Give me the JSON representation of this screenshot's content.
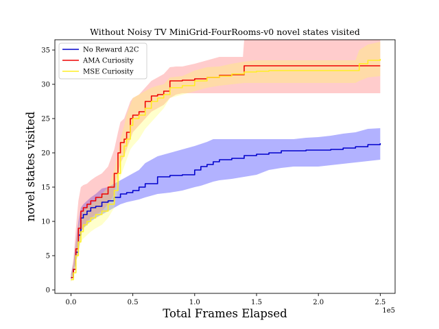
{
  "chart_data": {
    "type": "line",
    "title": "Without Noisy TV MiniGrid-FourRooms-v0 novel states visited",
    "xlabel": "Total Frames Elapsed",
    "ylabel": "novel states visited",
    "x_offset_text": "1e5",
    "xlim": [
      -0.13,
      2.62
    ],
    "ylim": [
      -0.5,
      36.5
    ],
    "x_ticks": [
      0.0,
      0.5,
      1.0,
      1.5,
      2.0,
      2.5
    ],
    "x_tick_labels": [
      "0.0",
      "0.5",
      "1.0",
      "1.5",
      "2.0",
      "2.5"
    ],
    "y_ticks": [
      0,
      5,
      10,
      15,
      20,
      25,
      30,
      35
    ],
    "y_tick_labels": [
      "0",
      "5",
      "10",
      "15",
      "20",
      "25",
      "30",
      "35"
    ],
    "legend_placement": "top-left",
    "grid": false,
    "series": [
      {
        "name": "No Reward A2C",
        "color": "#0000cc",
        "band_color": "#0000ff",
        "x": [
          0,
          0.02,
          0.04,
          0.06,
          0.08,
          0.1,
          0.13,
          0.16,
          0.2,
          0.25,
          0.3,
          0.35,
          0.4,
          0.45,
          0.5,
          0.55,
          0.6,
          0.7,
          0.8,
          0.9,
          1.0,
          1.05,
          1.1,
          1.15,
          1.2,
          1.3,
          1.4,
          1.5,
          1.6,
          1.7,
          1.8,
          1.9,
          2.0,
          2.1,
          2.2,
          2.3,
          2.4,
          2.5
        ],
        "y": [
          1.8,
          3.0,
          5.5,
          8.0,
          10.5,
          11.0,
          11.5,
          12.0,
          12.2,
          12.8,
          13.0,
          13.5,
          14.0,
          14.2,
          14.5,
          15.0,
          15.5,
          16.5,
          16.7,
          16.8,
          17.5,
          18.0,
          18.3,
          18.7,
          19.0,
          19.2,
          19.6,
          19.8,
          20.0,
          20.3,
          20.3,
          20.4,
          20.4,
          20.5,
          20.7,
          20.9,
          21.2,
          21.4
        ],
        "lower": [
          1.3,
          2.5,
          4.0,
          5.5,
          8.5,
          9.0,
          9.5,
          10.0,
          10.5,
          11.0,
          11.5,
          12.0,
          12.5,
          12.8,
          13.0,
          13.2,
          13.5,
          14.0,
          14.2,
          14.5,
          15.0,
          15.2,
          15.5,
          15.8,
          16.0,
          16.2,
          16.5,
          16.8,
          17.5,
          17.8,
          18.0,
          18.0,
          18.0,
          18.2,
          18.4,
          18.6,
          18.8,
          19.0
        ],
        "upper": [
          2.3,
          3.8,
          7.0,
          10.0,
          12.0,
          12.5,
          13.0,
          13.5,
          14.0,
          14.8,
          15.0,
          15.5,
          16.0,
          16.5,
          17.0,
          17.5,
          18.5,
          19.5,
          20.0,
          20.5,
          21.0,
          21.3,
          21.6,
          22.0,
          22.0,
          22.0,
          22.0,
          22.0,
          22.0,
          22.0,
          22.0,
          22.2,
          22.3,
          22.5,
          22.8,
          23.0,
          23.5,
          23.6
        ]
      },
      {
        "name": "AMA Curiosity",
        "color": "#ee0000",
        "band_color": "#ff5555",
        "x": [
          0,
          0.02,
          0.04,
          0.06,
          0.08,
          0.1,
          0.13,
          0.16,
          0.2,
          0.25,
          0.3,
          0.35,
          0.38,
          0.4,
          0.43,
          0.45,
          0.48,
          0.5,
          0.55,
          0.6,
          0.65,
          0.7,
          0.75,
          0.8,
          0.85,
          0.9,
          1.0,
          1.1,
          1.2,
          1.3,
          1.39,
          1.4,
          1.5,
          1.6,
          1.7,
          1.8,
          1.9,
          2.0,
          2.1,
          2.2,
          2.3,
          2.4,
          2.5
        ],
        "y": [
          1.8,
          3.0,
          6.0,
          9.0,
          11.5,
          12.0,
          12.5,
          13.0,
          13.5,
          14.0,
          15.0,
          17.0,
          20.0,
          21.5,
          22.0,
          23.0,
          25.0,
          25.5,
          26.0,
          27.5,
          28.3,
          28.5,
          29.0,
          30.5,
          30.5,
          30.6,
          30.8,
          31.0,
          31.3,
          31.4,
          31.4,
          32.7,
          32.7,
          32.7,
          32.7,
          32.7,
          32.7,
          32.7,
          32.7,
          32.7,
          32.7,
          32.7,
          32.7
        ],
        "lower": [
          1.3,
          2.5,
          4.5,
          6.5,
          8.5,
          9.0,
          10.0,
          10.5,
          11.0,
          11.5,
          12.5,
          14.0,
          17.0,
          18.5,
          19.5,
          20.5,
          22.0,
          23.0,
          24.0,
          25.0,
          26.0,
          26.5,
          27.0,
          28.0,
          28.5,
          28.7,
          28.7,
          28.7,
          28.7,
          28.7,
          28.7,
          28.7,
          28.7,
          28.7,
          28.7,
          28.7,
          28.7,
          28.7,
          28.7,
          28.7,
          28.7,
          28.7,
          28.7
        ],
        "upper": [
          2.3,
          4.5,
          9.0,
          13.0,
          15.0,
          15.3,
          15.5,
          16.0,
          16.5,
          17.0,
          18.0,
          20.5,
          23.0,
          24.5,
          25.0,
          26.0,
          27.5,
          28.0,
          28.5,
          29.5,
          30.5,
          31.0,
          31.5,
          32.5,
          32.6,
          32.6,
          33.0,
          33.5,
          34.0,
          34.0,
          34.0,
          36.5,
          36.5,
          36.5,
          36.5,
          36.5,
          36.5,
          36.5,
          36.5,
          36.5,
          36.5,
          36.5,
          36.5
        ]
      },
      {
        "name": "MSE Curiosity",
        "color": "#ffee22",
        "band_color": "#ffff55",
        "x": [
          0,
          0.02,
          0.04,
          0.06,
          0.08,
          0.1,
          0.13,
          0.16,
          0.2,
          0.25,
          0.3,
          0.35,
          0.38,
          0.4,
          0.43,
          0.45,
          0.48,
          0.5,
          0.55,
          0.6,
          0.65,
          0.7,
          0.75,
          0.8,
          0.9,
          1.0,
          1.1,
          1.2,
          1.3,
          1.4,
          1.5,
          1.6,
          1.7,
          1.8,
          1.9,
          2.0,
          2.1,
          2.2,
          2.3,
          2.33,
          2.4,
          2.5
        ],
        "y": [
          1.5,
          2.5,
          5.0,
          7.0,
          8.5,
          9.5,
          10.0,
          10.5,
          11.0,
          11.5,
          12.5,
          14.5,
          17.0,
          19.5,
          21.0,
          22.0,
          24.0,
          25.0,
          25.5,
          26.5,
          27.5,
          28.0,
          28.5,
          29.5,
          29.8,
          30.5,
          31.0,
          31.2,
          31.5,
          31.8,
          31.9,
          32.0,
          32.0,
          32.0,
          32.0,
          32.0,
          32.0,
          32.0,
          32.0,
          33.0,
          33.5,
          33.7
        ],
        "lower": [
          1.1,
          2.0,
          4.0,
          5.5,
          7.0,
          7.5,
          8.0,
          8.5,
          9.0,
          9.5,
          10.5,
          12.0,
          14.5,
          16.5,
          18.0,
          19.0,
          20.5,
          21.0,
          22.0,
          23.5,
          24.5,
          25.5,
          26.5,
          28.0,
          28.5,
          29.0,
          29.5,
          29.8,
          30.0,
          30.2,
          30.2,
          30.2,
          30.2,
          30.2,
          30.2,
          30.2,
          30.2,
          30.2,
          30.2,
          30.5,
          31.0,
          31.2
        ],
        "upper": [
          2.0,
          3.5,
          6.5,
          9.0,
          10.5,
          11.5,
          12.0,
          12.5,
          13.0,
          14.0,
          15.0,
          17.5,
          20.0,
          22.0,
          24.0,
          25.5,
          27.0,
          28.0,
          28.5,
          29.0,
          29.5,
          29.8,
          30.0,
          31.0,
          31.2,
          32.0,
          32.5,
          32.6,
          33.0,
          33.3,
          33.5,
          33.5,
          33.5,
          33.5,
          33.5,
          33.5,
          33.5,
          33.5,
          33.5,
          35.0,
          35.8,
          36.2
        ]
      }
    ]
  }
}
